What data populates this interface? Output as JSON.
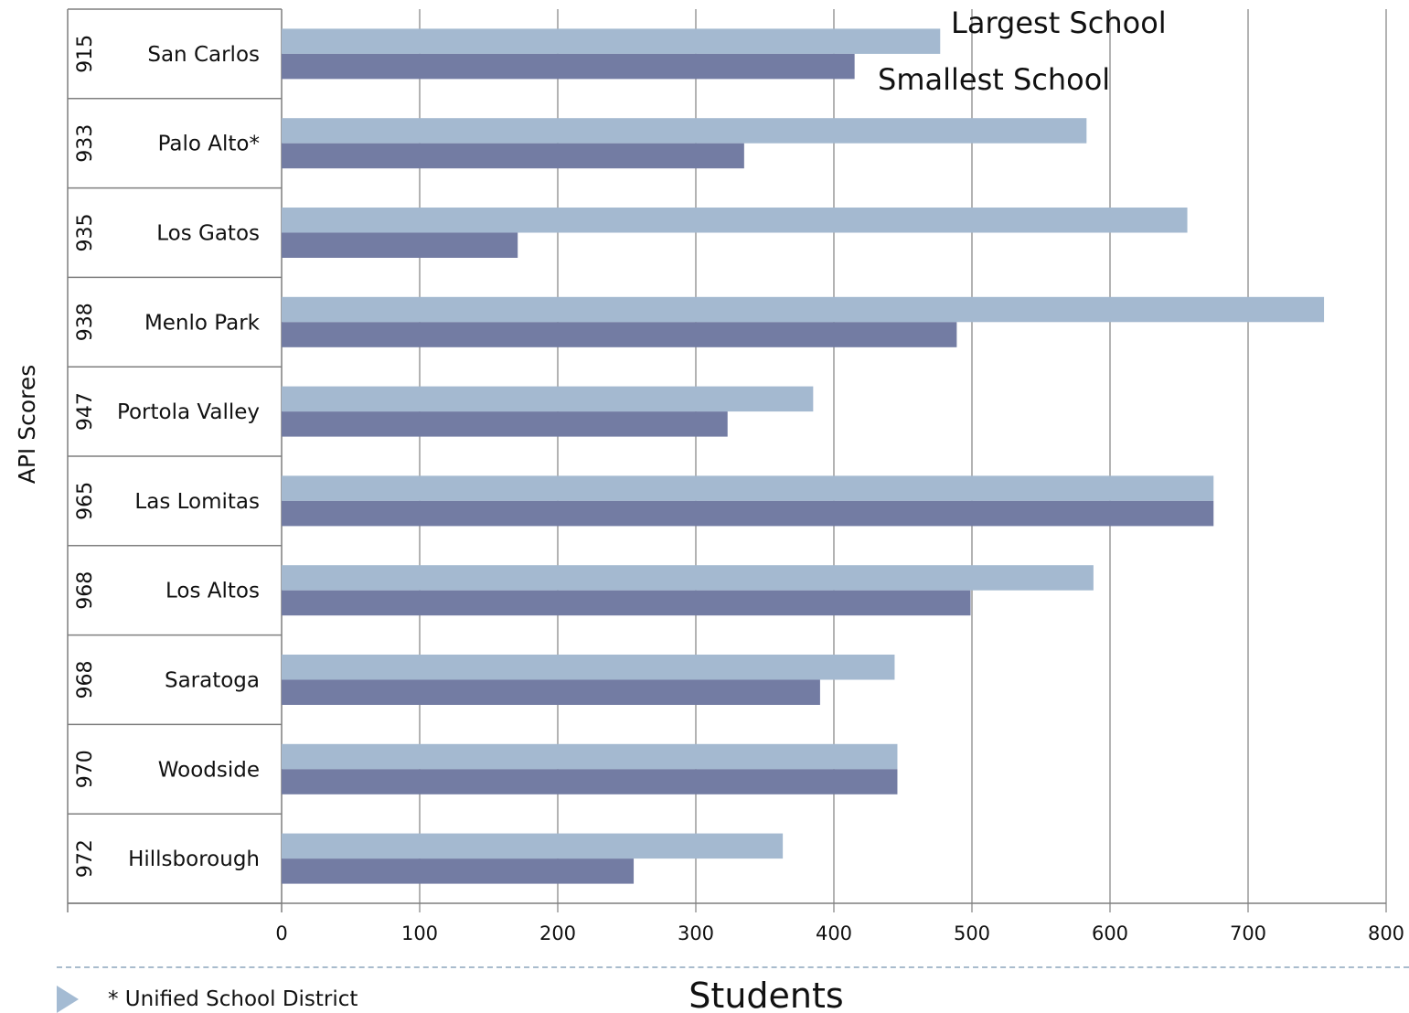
{
  "chart_data": {
    "type": "bar",
    "orientation": "horizontal",
    "xlabel": "Students",
    "ylabel": "API Scores",
    "xlim": [
      0,
      800
    ],
    "xticks": [
      "0",
      "100",
      "200",
      "300",
      "400",
      "500",
      "600",
      "700",
      "800"
    ],
    "grid": "vertical",
    "categories": [
      {
        "district": "San Carlos",
        "api": "915"
      },
      {
        "district": "Palo Alto*",
        "api": "933"
      },
      {
        "district": "Los Gatos",
        "api": "935"
      },
      {
        "district": "Menlo Park",
        "api": "938"
      },
      {
        "district": "Portola Valley",
        "api": "947"
      },
      {
        "district": "Las Lomitas",
        "api": "965"
      },
      {
        "district": "Los Altos",
        "api": "968"
      },
      {
        "district": "Saratoga",
        "api": "968"
      },
      {
        "district": "Woodside",
        "api": "970"
      },
      {
        "district": "Hillsborough",
        "api": "972"
      }
    ],
    "series": [
      {
        "name": "Largest School",
        "color": "#a4b9d0",
        "values": [
          477,
          583,
          656,
          755,
          385,
          675,
          588,
          444,
          446,
          363
        ]
      },
      {
        "name": "Smallest School",
        "color": "#737ca3",
        "values": [
          415,
          335,
          171,
          489,
          323,
          675,
          499,
          390,
          446,
          255
        ]
      }
    ],
    "legend_placement": "top-right, inside plot"
  },
  "footnote": "* Unified School District",
  "bullet_icon": "triangle-bullet-icon"
}
